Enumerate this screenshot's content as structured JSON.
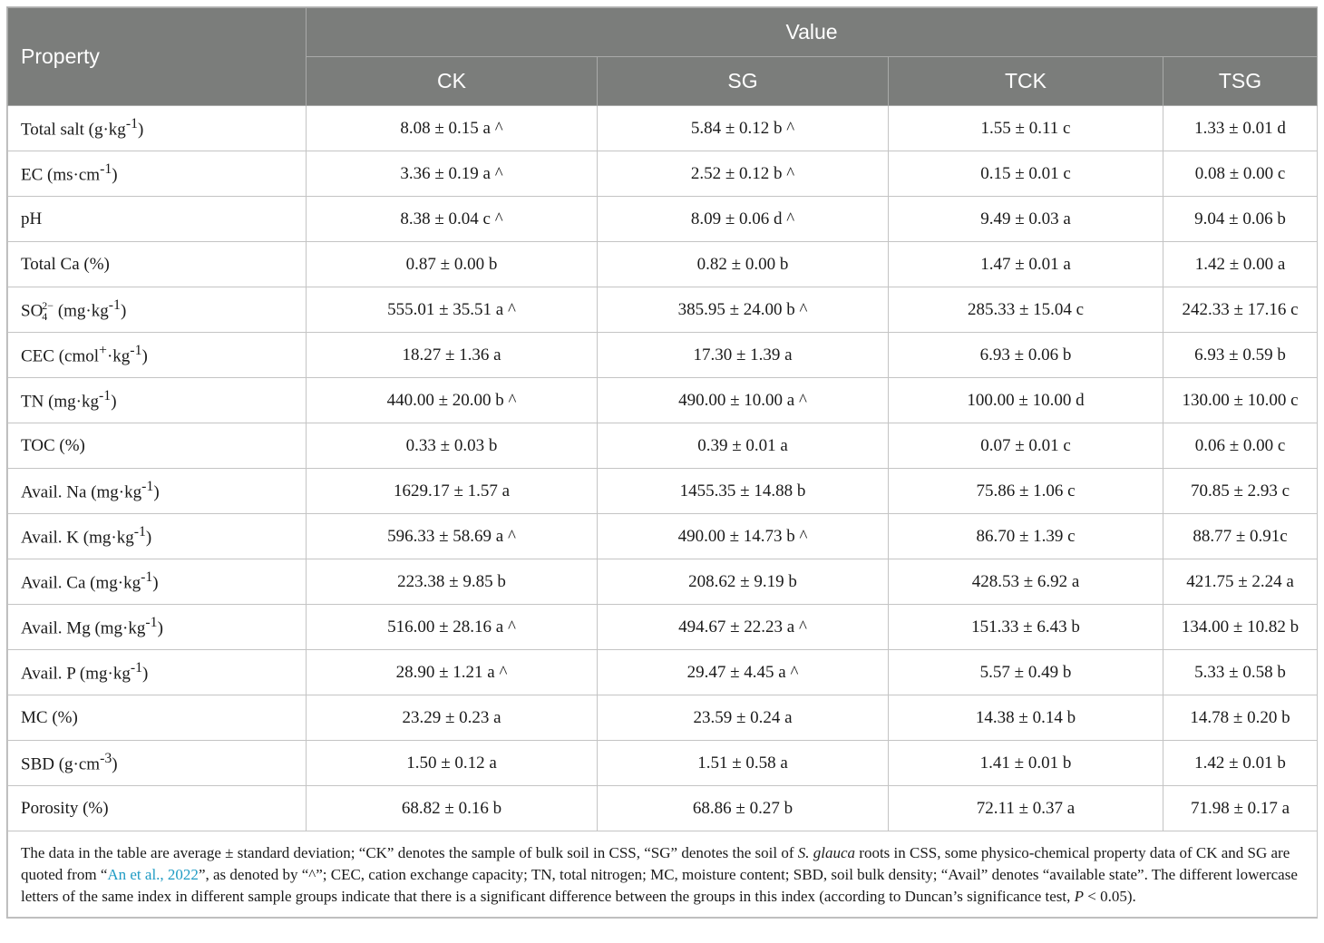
{
  "header": {
    "property": "Property",
    "value": "Value",
    "columns": [
      "CK",
      "SG",
      "TCK",
      "TSG"
    ]
  },
  "rows": [
    {
      "label": "Total salt (g·kg",
      "sup": "-1",
      "tail": ")",
      "values": [
        "8.08 ± 0.15 a ^",
        "5.84 ± 0.12 b ^",
        "1.55 ± 0.11 c",
        "1.33 ± 0.01 d"
      ]
    },
    {
      "label": "EC (ms·cm",
      "sup": "-1",
      "tail": ")",
      "values": [
        "3.36 ± 0.19 a ^",
        "2.52 ± 0.12 b ^",
        "0.15 ± 0.01 c",
        "0.08 ± 0.00 c"
      ]
    },
    {
      "label": "pH",
      "sup": "",
      "tail": "",
      "values": [
        "8.38 ± 0.04 c ^",
        "8.09 ± 0.06 d ^",
        "9.49 ± 0.03 a",
        "9.04 ± 0.06 b"
      ]
    },
    {
      "label": "Total Ca (%)",
      "sup": "",
      "tail": "",
      "values": [
        "0.87 ± 0.00 b",
        "0.82 ± 0.00 b",
        "1.47 ± 0.01 a",
        "1.42 ± 0.00 a"
      ]
    },
    {
      "label": "SO",
      "sup": "2−",
      "sub": "4",
      "tail": " (mg·kg",
      "sup2": "-1",
      "tail2": ")",
      "values": [
        "555.01 ± 35.51 a ^",
        "385.95 ± 24.00 b ^",
        "285.33 ± 15.04 c",
        "242.33 ± 17.16 c"
      ]
    },
    {
      "label": "CEC (cmol",
      "sup": "+",
      "tail": "·kg",
      "sup2": "-1",
      "tail2": ")",
      "values": [
        "18.27 ± 1.36 a",
        "17.30 ± 1.39 a",
        "6.93 ± 0.06 b",
        "6.93 ± 0.59 b"
      ]
    },
    {
      "label": "TN (mg·kg",
      "sup": "-1",
      "tail": ")",
      "values": [
        "440.00 ± 20.00 b ^",
        "490.00 ± 10.00 a ^",
        "100.00 ± 10.00 d",
        "130.00 ± 10.00 c"
      ]
    },
    {
      "label": "TOC (%)",
      "sup": "",
      "tail": "",
      "values": [
        "0.33 ± 0.03 b",
        "0.39 ± 0.01 a",
        "0.07 ± 0.01 c",
        "0.06 ± 0.00 c"
      ]
    },
    {
      "label": "Avail. Na (mg·kg",
      "sup": "-1",
      "tail": ")",
      "values": [
        "1629.17 ± 1.57 a",
        "1455.35 ± 14.88 b",
        "75.86 ± 1.06 c",
        "70.85 ± 2.93 c"
      ]
    },
    {
      "label": "Avail. K (mg·kg",
      "sup": "-1",
      "tail": ")",
      "values": [
        "596.33 ± 58.69 a ^",
        "490.00 ± 14.73 b ^",
        "86.70 ± 1.39 c",
        "88.77 ± 0.91c"
      ]
    },
    {
      "label": "Avail. Ca (mg·kg",
      "sup": "-1",
      "tail": ")",
      "values": [
        "223.38 ± 9.85 b",
        "208.62 ± 9.19 b",
        "428.53 ± 6.92 a",
        "421.75 ± 2.24 a"
      ]
    },
    {
      "label": "Avail. Mg (mg·kg",
      "sup": "-1",
      "tail": ")",
      "values": [
        "516.00 ± 28.16 a ^",
        "494.67 ± 22.23 a ^",
        "151.33 ± 6.43 b",
        "134.00 ± 10.82 b"
      ]
    },
    {
      "label": "Avail. P (mg·kg",
      "sup": "-1",
      "tail": ")",
      "values": [
        "28.90 ± 1.21 a ^",
        "29.47 ± 4.45 a ^",
        "5.57 ± 0.49 b",
        "5.33 ± 0.58 b"
      ]
    },
    {
      "label": "MC (%)",
      "sup": "",
      "tail": "",
      "values": [
        "23.29 ± 0.23 a",
        "23.59 ± 0.24 a",
        "14.38 ± 0.14 b",
        "14.78 ± 0.20 b"
      ]
    },
    {
      "label": "SBD (g·cm",
      "sup": "-3",
      "tail": ")",
      "values": [
        "1.50 ± 0.12 a",
        "1.51 ± 0.58 a",
        "1.41 ± 0.01 b",
        "1.42 ± 0.01 b"
      ]
    },
    {
      "label": "Porosity (%)",
      "sup": "",
      "tail": "",
      "values": [
        "68.82 ± 0.16 b",
        "68.86 ± 0.27 b",
        "72.11 ± 0.37 a",
        "71.98 ± 0.17 a"
      ]
    }
  ],
  "caption": {
    "part1": "The data in the table are average ± standard deviation; “CK” denotes the sample of bulk soil in CSS, “SG” denotes the soil of ",
    "italic": "S. glauca",
    "part2": " roots in CSS, some physico-chemical property data of CK and SG are quoted from “",
    "link": "An et al., 2022",
    "part3": "”, as denoted by “^”; CEC, cation exchange capacity; TN, total nitrogen; MC, moisture content; SBD, soil bulk density; “Avail” denotes “available state”. The different lowercase letters of the same index in different sample groups indicate that there is a significant difference between the groups in this index (according to Duncan’s significance test, ",
    "italic2": "P",
    "part4": " < 0.05)."
  },
  "colors": {
    "header_bg": "#7b7d7b",
    "link": "#1f9bc4"
  }
}
